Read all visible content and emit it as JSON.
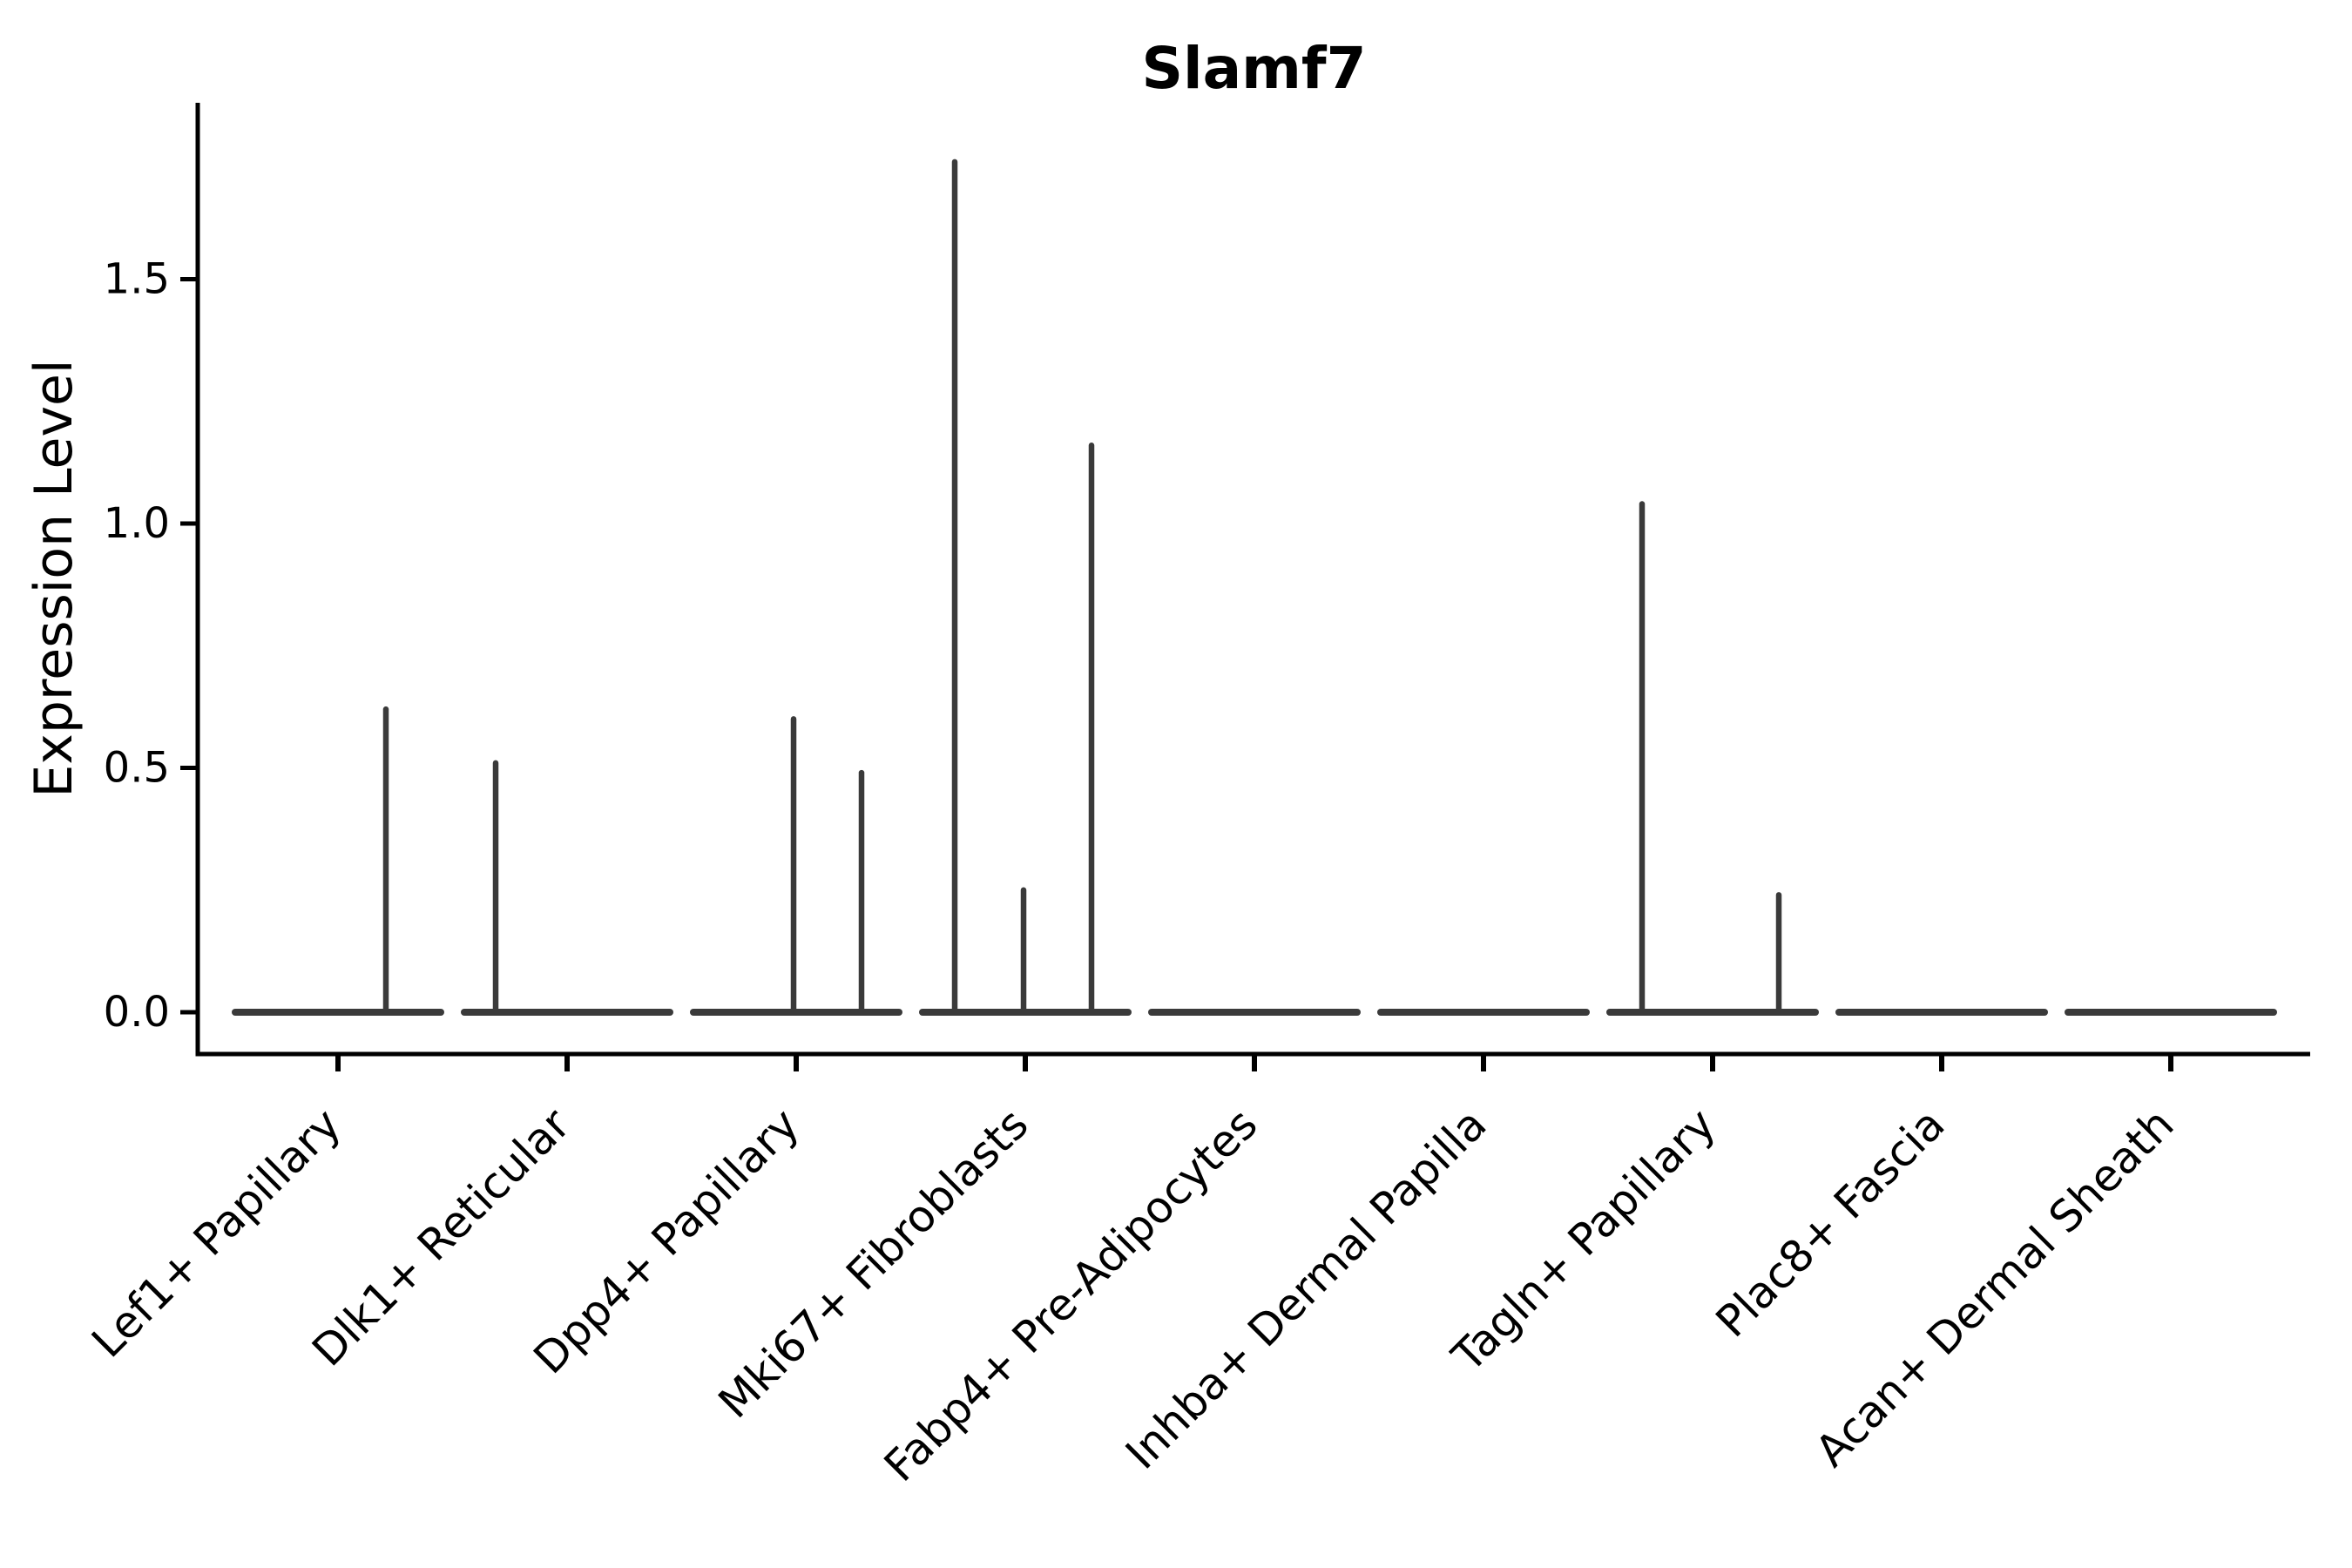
{
  "figure": {
    "background": "#ffffff"
  },
  "chart_data": {
    "type": "violin",
    "title": "Slamf7",
    "ylabel": "Expression Level",
    "xlabel": "",
    "ylim": [
      0,
      1.86
    ],
    "y_ticks": [
      "0.0",
      "0.5",
      "1.0",
      "1.5"
    ],
    "grid": false,
    "legend": false,
    "categories": [
      "Lef1+ Papillary",
      "Dlk1+ Reticular",
      "Dpp4+ Papillary",
      "Mki67+ Fibroblasts",
      "Fabp4+ Pre-Adipocytes",
      "Inhba+ Dermal Papilla",
      "Tagln+ Papillary",
      "Plac8+ Fascia",
      "Acan+ Dermal Sheath"
    ],
    "series": [
      {
        "category": "Lef1+ Papillary",
        "baseline_value": 0,
        "stems": [
          {
            "dx": 55,
            "value": 0.62
          }
        ]
      },
      {
        "category": "Dlk1+ Reticular",
        "baseline_value": 0,
        "stems": [
          {
            "dx": -82,
            "value": 0.51
          }
        ]
      },
      {
        "category": "Dpp4+ Papillary",
        "baseline_value": 0,
        "stems": [
          {
            "dx": -3,
            "value": 0.6
          },
          {
            "dx": 75,
            "value": 0.49
          }
        ]
      },
      {
        "category": "Mki67+ Fibroblasts",
        "baseline_value": 0,
        "stems": [
          {
            "dx": -81,
            "value": 1.74
          },
          {
            "dx": -2,
            "value": 0.25
          },
          {
            "dx": 76,
            "value": 1.16
          }
        ]
      },
      {
        "category": "Fabp4+ Pre-Adipocytes",
        "baseline_value": 0,
        "stems": []
      },
      {
        "category": "Inhba+ Dermal Papilla",
        "baseline_value": 0,
        "stems": []
      },
      {
        "category": "Tagln+ Papillary",
        "baseline_value": 0,
        "stems": [
          {
            "dx": -81,
            "value": 1.04
          },
          {
            "dx": 76,
            "value": 0.24
          }
        ]
      },
      {
        "category": "Plac8+ Fascia",
        "baseline_value": 0,
        "stems": []
      },
      {
        "category": "Acan+ Dermal Sheath",
        "baseline_value": 0,
        "stems": []
      }
    ],
    "colors": {
      "violin_stroke": "#3a3a3a",
      "axis": "#000000",
      "text": "#000000"
    }
  }
}
